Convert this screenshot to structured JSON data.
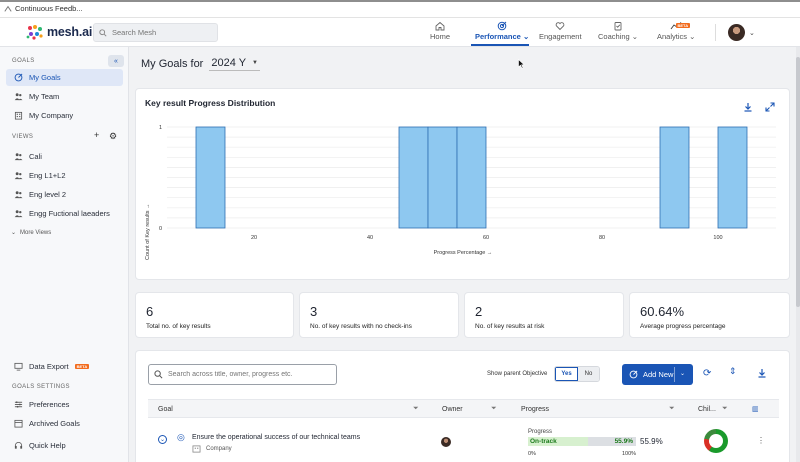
{
  "browser": {
    "tab_title": "Continuous Feedb..."
  },
  "topnav": {
    "search_placeholder": "Search Mesh",
    "logo_text": "mesh.ai",
    "items": [
      {
        "label": "Home",
        "icon": "home-icon"
      },
      {
        "label": "Performance",
        "icon": "target-icon",
        "active": true
      },
      {
        "label": "Engagement",
        "icon": "heart-icon"
      },
      {
        "label": "Coaching",
        "icon": "clipboard-icon"
      },
      {
        "label": "Analytics",
        "icon": "trend-icon",
        "badge": "BETA"
      }
    ]
  },
  "sidebar": {
    "goals_heading": "GOALS",
    "goals_items": [
      {
        "label": "My Goals",
        "active": true
      },
      {
        "label": "My Team"
      },
      {
        "label": "My Company"
      }
    ],
    "views_heading": "VIEWS",
    "views_items": [
      "Cali",
      "Eng L1+L2",
      "Eng level 2",
      "Engg Fuctional laeaders"
    ],
    "more_views": "More Views",
    "data_export": "Data Export",
    "data_export_badge": "BETA",
    "settings_heading": "GOALS SETTINGS",
    "settings_items": [
      "Preferences",
      "Archived Goals"
    ],
    "quick_help": "Quick Help"
  },
  "main": {
    "title_prefix": "My Goals for",
    "year": "2024 Y"
  },
  "chart_data": {
    "type": "bar",
    "title": "Key result Progress Distribution",
    "xlabel": "Progress Percentage →",
    "ylabel": "Count of Key results →",
    "x_ticks": [
      20,
      40,
      60,
      80,
      100
    ],
    "y_ticks": [
      0,
      1
    ],
    "xlim": [
      5,
      110
    ],
    "ylim": [
      0,
      1
    ],
    "bins": [
      {
        "x0": 10,
        "x1": 15,
        "count": 1
      },
      {
        "x0": 45,
        "x1": 50,
        "count": 1
      },
      {
        "x0": 50,
        "x1": 55,
        "count": 1
      },
      {
        "x0": 55,
        "x1": 60,
        "count": 1
      },
      {
        "x0": 90,
        "x1": 95,
        "count": 1
      },
      {
        "x0": 100,
        "x1": 105,
        "count": 1
      }
    ],
    "bar_color": "#8ec8f0",
    "bar_border": "#2e6fb2",
    "grid": true
  },
  "stats": [
    {
      "value": "6",
      "label": "Total no. of key results"
    },
    {
      "value": "3",
      "label": "No. of key results with no check-ins"
    },
    {
      "value": "2",
      "label": "No. of key results at risk"
    },
    {
      "value": "60.64%",
      "label": "Average progress percentage"
    }
  ],
  "goals_table": {
    "search_placeholder": "Search across title, owner, progress etc.",
    "show_parent_label": "Show parent Objective",
    "toggle_yes": "Yes",
    "toggle_no": "No",
    "add_new": "Add New",
    "columns": [
      "Goal",
      "Owner",
      "Progress",
      "Chil..."
    ],
    "rows": [
      {
        "title": "Ensure the operational success of our technical teams",
        "scope": "Company",
        "progress_header": "Progress",
        "status": "On-track",
        "percent_in_bar": "55.9%",
        "percent": "55.9%",
        "progress_value": 0.559,
        "min": "0%",
        "max": "100%"
      }
    ]
  },
  "colors": {
    "primary": "#1a55b5",
    "on_track": "#1b7a1b",
    "beta": "#f26b1d"
  }
}
